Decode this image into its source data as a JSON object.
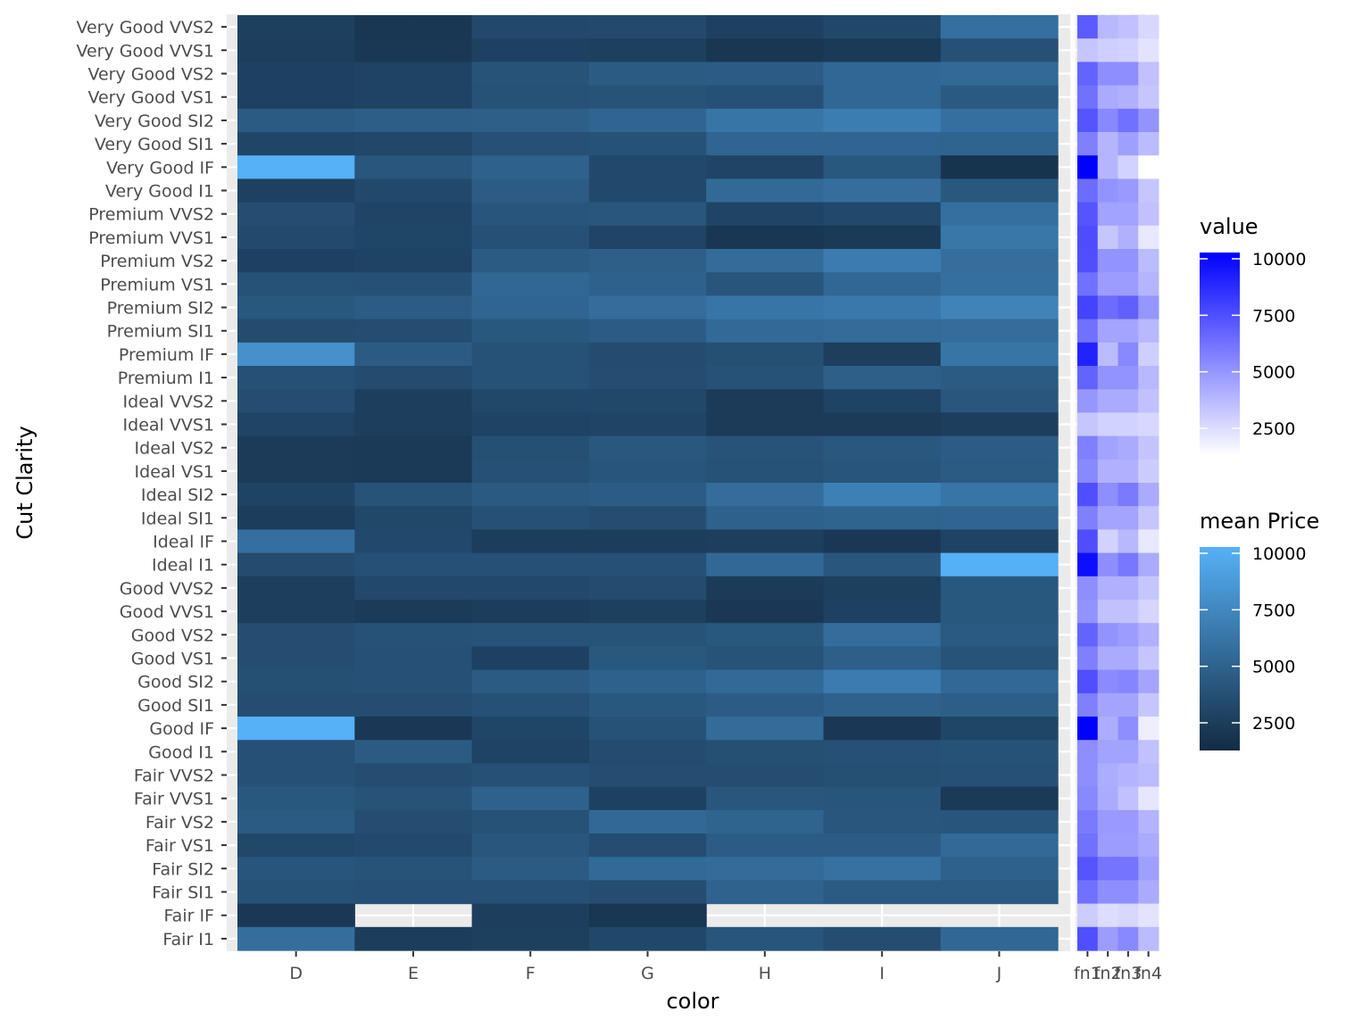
{
  "chart_data": {
    "type": "heatmap",
    "xlabel": "color",
    "ylabel": "Cut Clarity",
    "x_categories": [
      "D",
      "E",
      "F",
      "G",
      "H",
      "I",
      "J"
    ],
    "y_categories": [
      "Very Good VVS2",
      "Very Good VVS1",
      "Very Good VS2",
      "Very Good VS1",
      "Very Good SI2",
      "Very Good SI1",
      "Very Good IF",
      "Very Good I1",
      "Premium VVS2",
      "Premium VVS1",
      "Premium VS2",
      "Premium VS1",
      "Premium SI2",
      "Premium SI1",
      "Premium IF",
      "Premium I1",
      "Ideal VVS2",
      "Ideal VVS1",
      "Ideal VS2",
      "Ideal VS1",
      "Ideal SI2",
      "Ideal SI1",
      "Ideal IF",
      "Ideal I1",
      "Good VVS2",
      "Good VVS1",
      "Good VS2",
      "Good VS1",
      "Good SI2",
      "Good SI1",
      "Good IF",
      "Good I1",
      "Fair VVS2",
      "Fair VVS1",
      "Fair VS2",
      "Fair VS1",
      "Fair SI2",
      "Fair SI1",
      "Fair IF",
      "Fair I1"
    ],
    "values": [
      [
        2400,
        1800,
        3000,
        3100,
        2500,
        2900,
        5600
      ],
      [
        2300,
        1900,
        2500,
        2400,
        1800,
        2000,
        3500
      ],
      [
        2500,
        2600,
        3700,
        4200,
        4300,
        5000,
        5200
      ],
      [
        2500,
        2600,
        3600,
        3700,
        3500,
        5000,
        4100
      ],
      [
        4200,
        4400,
        4500,
        4900,
        6000,
        6500,
        5600
      ],
      [
        2800,
        2900,
        3500,
        3600,
        4900,
        4900,
        4800
      ],
      [
        10000,
        3900,
        4600,
        3000,
        2700,
        4000,
        1600
      ],
      [
        2500,
        3000,
        4300,
        3000,
        5200,
        5500,
        4000
      ],
      [
        3300,
        2700,
        3800,
        3900,
        2700,
        3000,
        5600
      ],
      [
        3100,
        2800,
        3500,
        2700,
        1800,
        2000,
        6100
      ],
      [
        2500,
        2600,
        4200,
        4500,
        5300,
        6400,
        5500
      ],
      [
        3600,
        3500,
        5000,
        4600,
        3800,
        5000,
        5600
      ],
      [
        4000,
        4300,
        4900,
        5400,
        6000,
        6200,
        6900
      ],
      [
        3200,
        3300,
        4000,
        4300,
        5200,
        5300,
        5400
      ],
      [
        7800,
        4200,
        3600,
        3200,
        3400,
        2300,
        6000
      ],
      [
        3500,
        3200,
        3600,
        3300,
        3600,
        4500,
        4200
      ],
      [
        3300,
        2300,
        2900,
        2900,
        2100,
        2600,
        3900
      ],
      [
        2700,
        2300,
        2600,
        2700,
        2100,
        2100,
        2300
      ],
      [
        2100,
        2000,
        3400,
        4000,
        3700,
        4000,
        4300
      ],
      [
        2100,
        2000,
        3500,
        3800,
        3600,
        3800,
        4200
      ],
      [
        2600,
        3700,
        4100,
        4300,
        5400,
        6700,
        6000
      ],
      [
        2200,
        2900,
        3500,
        3300,
        4600,
        4800,
        4900
      ],
      [
        5600,
        3000,
        2200,
        2200,
        2300,
        1900,
        2600
      ],
      [
        3200,
        3500,
        3500,
        3500,
        5100,
        3900,
        9900
      ],
      [
        2300,
        3000,
        3000,
        3200,
        2100,
        2400,
        4000
      ],
      [
        2300,
        2100,
        2200,
        2400,
        1900,
        2500,
        4000
      ],
      [
        3300,
        3600,
        3700,
        3700,
        4000,
        5400,
        4100
      ],
      [
        3300,
        3500,
        2500,
        4000,
        3700,
        4500,
        3700
      ],
      [
        3400,
        3500,
        4200,
        4600,
        5200,
        6400,
        5100
      ],
      [
        3300,
        3300,
        3500,
        4000,
        4300,
        4600,
        4400
      ],
      [
        10000,
        1900,
        2800,
        3600,
        5300,
        1900,
        2800
      ],
      [
        3500,
        4200,
        2600,
        3200,
        3400,
        3500,
        3600
      ],
      [
        3500,
        3300,
        3500,
        3300,
        3300,
        3400,
        3500
      ],
      [
        4000,
        3700,
        4600,
        2500,
        3900,
        3800,
        2000
      ],
      [
        4200,
        3300,
        3600,
        5100,
        4800,
        3900,
        3800
      ],
      [
        2900,
        3100,
        3900,
        3300,
        4300,
        4300,
        5200
      ],
      [
        3800,
        3700,
        4200,
        5200,
        5300,
        5700,
        4600
      ],
      [
        3600,
        3500,
        3500,
        3300,
        4700,
        4200,
        4200
      ],
      [
        1900,
        null,
        2300,
        1800,
        null,
        null,
        null
      ],
      [
        5500,
        2200,
        2400,
        2900,
        3800,
        3300,
        5000
      ]
    ],
    "side_panel": {
      "x_categories": [
        "fn1",
        "fn2",
        "fn3",
        "fn4"
      ],
      "values": [
        [
          6800,
          3500,
          3200,
          2400
        ],
        [
          3000,
          2700,
          2600,
          2000
        ],
        [
          6500,
          5000,
          5000,
          3200
        ],
        [
          6000,
          4000,
          3800,
          3000
        ],
        [
          7000,
          5200,
          6000,
          4800
        ],
        [
          5500,
          3600,
          4400,
          3400
        ],
        [
          10000,
          3600,
          2600,
          1000
        ],
        [
          6200,
          4800,
          4600,
          3000
        ],
        [
          7000,
          4300,
          4300,
          3200
        ],
        [
          7300,
          3000,
          3800,
          1800
        ],
        [
          7200,
          4800,
          4800,
          3400
        ],
        [
          6000,
          4500,
          4500,
          3600
        ],
        [
          7600,
          6200,
          6600,
          4700
        ],
        [
          6000,
          4200,
          4200,
          3500
        ],
        [
          8800,
          3400,
          5200,
          2700
        ],
        [
          6500,
          4800,
          4800,
          3500
        ],
        [
          4700,
          4000,
          4000,
          3200
        ],
        [
          3000,
          2600,
          2600,
          2400
        ],
        [
          5500,
          4300,
          4000,
          3100
        ],
        [
          5200,
          3800,
          3800,
          2800
        ],
        [
          7200,
          5000,
          5700,
          4000
        ],
        [
          5500,
          4200,
          4200,
          3000
        ],
        [
          7200,
          2600,
          3500,
          1800
        ],
        [
          9500,
          5000,
          5800,
          4000
        ],
        [
          5000,
          3800,
          3800,
          3000
        ],
        [
          4800,
          3200,
          3200,
          2500
        ],
        [
          6500,
          4800,
          4500,
          3800
        ],
        [
          5500,
          4000,
          4000,
          3000
        ],
        [
          7200,
          5100,
          5300,
          4200
        ],
        [
          5500,
          4200,
          4200,
          3000
        ],
        [
          10000,
          3900,
          5000,
          1600
        ],
        [
          5000,
          4300,
          4300,
          3200
        ],
        [
          5000,
          3900,
          3700,
          3400
        ],
        [
          5200,
          4000,
          3200,
          1900
        ],
        [
          5700,
          4600,
          4600,
          3700
        ],
        [
          6000,
          4500,
          4500,
          4000
        ],
        [
          7000,
          5900,
          5900,
          4400
        ],
        [
          6000,
          5000,
          5000,
          4000
        ],
        [
          2800,
          2200,
          2400,
          2000
        ],
        [
          7200,
          4500,
          5200,
          3400
        ]
      ]
    },
    "legends": [
      {
        "title": "value",
        "ticks": [
          10000,
          7500,
          5000,
          2500
        ],
        "low_color": "#FFFFFF",
        "high_color": "#0000FF",
        "range": [
          1000,
          10000
        ]
      },
      {
        "title": "mean Price",
        "ticks": [
          10000,
          7500,
          5000,
          2500
        ],
        "low_color": "#132B43",
        "high_color": "#56B1F7",
        "range": [
          1000,
          10000
        ]
      }
    ],
    "grid": true
  }
}
